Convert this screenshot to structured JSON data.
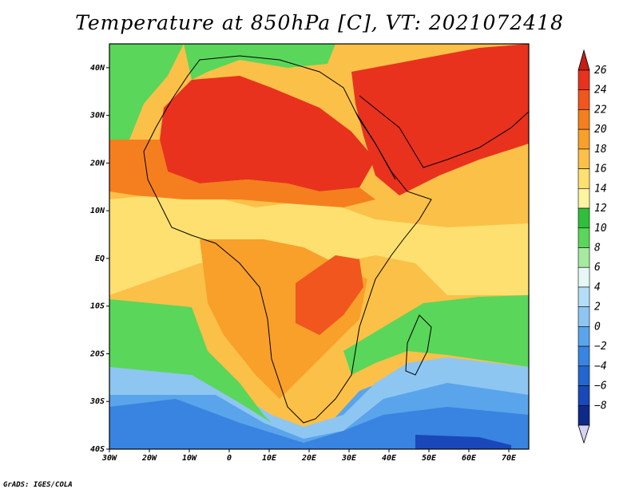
{
  "title": "Temperature at 850hPa [C], VT: 2021072418",
  "credit": "GrADS: IGES/COLA",
  "map": {
    "lon_range": [
      -30,
      75
    ],
    "lat_range": [
      -40,
      45
    ],
    "lon_ticks": [
      {
        "value": -30,
        "label": "30W"
      },
      {
        "value": -20,
        "label": "20W"
      },
      {
        "value": -10,
        "label": "10W"
      },
      {
        "value": 0,
        "label": "0"
      },
      {
        "value": 10,
        "label": "10E"
      },
      {
        "value": 20,
        "label": "20E"
      },
      {
        "value": 30,
        "label": "30E"
      },
      {
        "value": 40,
        "label": "40E"
      },
      {
        "value": 50,
        "label": "50E"
      },
      {
        "value": 60,
        "label": "60E"
      },
      {
        "value": 70,
        "label": "70E"
      }
    ],
    "lat_ticks": [
      {
        "value": 40,
        "label": "40N"
      },
      {
        "value": 30,
        "label": "30N"
      },
      {
        "value": 20,
        "label": "20N"
      },
      {
        "value": 10,
        "label": "10N"
      },
      {
        "value": 0,
        "label": "EQ"
      },
      {
        "value": -10,
        "label": "10S"
      },
      {
        "value": -20,
        "label": "20S"
      },
      {
        "value": -30,
        "label": "30S"
      },
      {
        "value": -40,
        "label": "40S"
      }
    ]
  },
  "colorbar": {
    "levels": [
      {
        "label": "26",
        "color": "#e8321e"
      },
      {
        "label": "24",
        "color": "#f0561e"
      },
      {
        "label": "22",
        "color": "#f57f1e"
      },
      {
        "label": "20",
        "color": "#f8a02a"
      },
      {
        "label": "18",
        "color": "#fbc048"
      },
      {
        "label": "16",
        "color": "#fde070"
      },
      {
        "label": "14",
        "color": "#fdf4a0"
      },
      {
        "label": "12",
        "color": "#2fbf3a"
      },
      {
        "label": "10",
        "color": "#5ad65a"
      },
      {
        "label": "8",
        "color": "#a4eaa0"
      },
      {
        "label": "6",
        "color": "#e6f8f6"
      },
      {
        "label": "4",
        "color": "#b4def8"
      },
      {
        "label": "2",
        "color": "#8ec6f2"
      },
      {
        "label": "0",
        "color": "#5aa4ec"
      },
      {
        "label": "−2",
        "color": "#3884e0"
      },
      {
        "label": "−4",
        "color": "#2466d0"
      },
      {
        "label": "−6",
        "color": "#1a48b8"
      },
      {
        "label": "−8",
        "color": "#0e2a88"
      }
    ],
    "top_color": "#c81e14",
    "bottom_color": "#d6d2f4"
  },
  "regions": [
    {
      "name": "cold-south-ocean",
      "color": "#3884e0"
    },
    {
      "name": "south-ocean-blue",
      "color": "#5aa4ec"
    },
    {
      "name": "deep-cold-patch",
      "color": "#1a48b8"
    },
    {
      "name": "cool-band",
      "color": "#8ec6f2"
    },
    {
      "name": "south-atlantic-green",
      "color": "#5ad65a"
    },
    {
      "name": "indian-ocean-green",
      "color": "#5ad65a"
    },
    {
      "name": "north-atlantic-green",
      "color": "#5ad65a"
    },
    {
      "name": "mediterranean-green",
      "color": "#5ad65a"
    },
    {
      "name": "tropical-warm",
      "color": "#fbc048"
    },
    {
      "name": "sahara-hot",
      "color": "#e8321e"
    },
    {
      "name": "arabia-hot",
      "color": "#e8321e"
    },
    {
      "name": "southern-africa-warm",
      "color": "#f8a02a"
    }
  ]
}
